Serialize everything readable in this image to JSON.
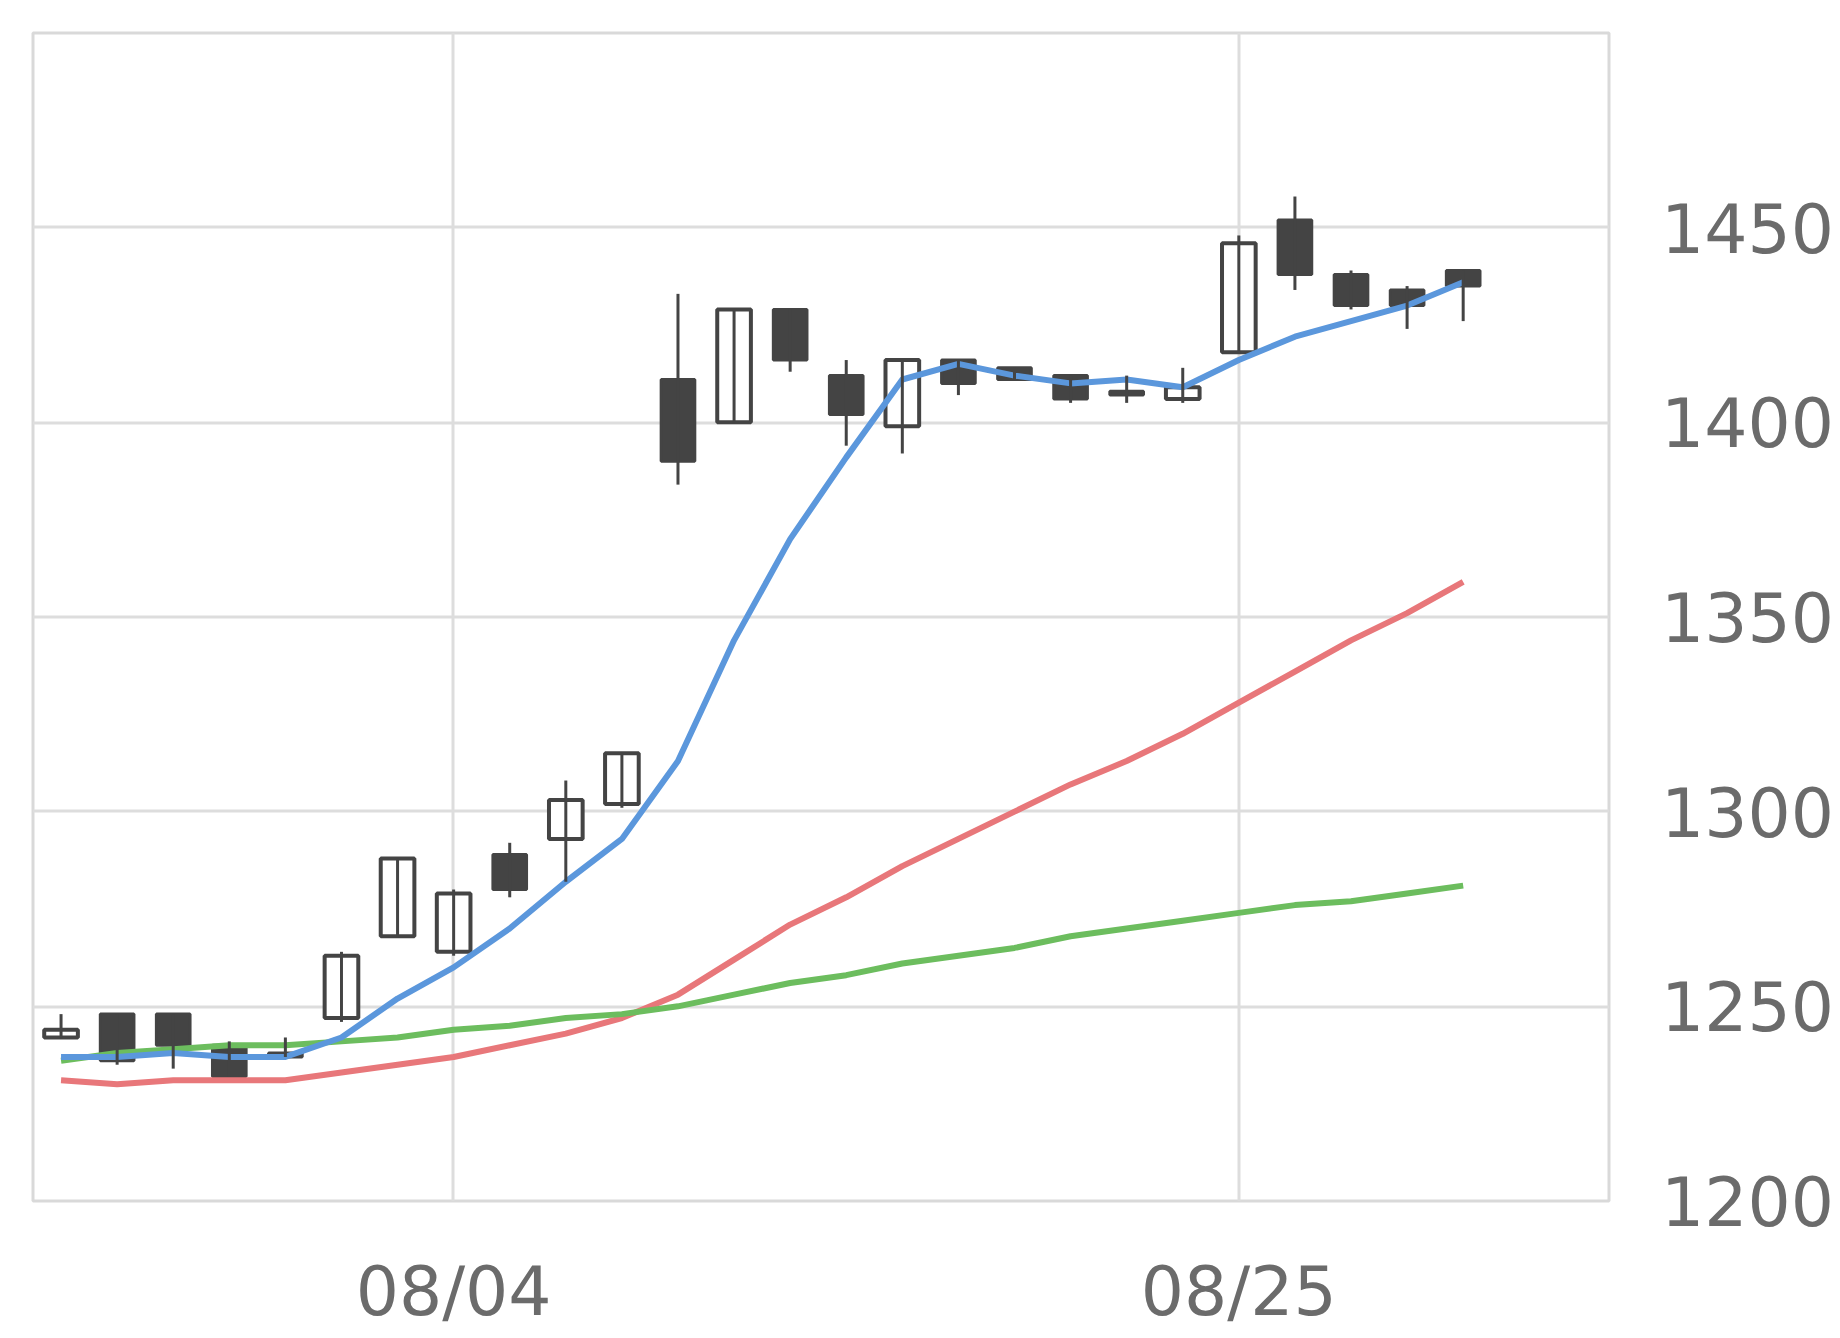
{
  "chart_data": {
    "type": "candlestick",
    "categories": [
      null,
      null,
      null,
      null,
      null,
      null,
      null,
      "08/04",
      null,
      null,
      null,
      null,
      null,
      null,
      null,
      null,
      null,
      null,
      null,
      null,
      null,
      "08/25",
      null,
      null,
      null,
      null
    ],
    "ohlc": [
      [
        1242,
        1248,
        1242,
        1244
      ],
      [
        1248,
        1248,
        1235,
        1236
      ],
      [
        1248,
        1248,
        1234,
        1240
      ],
      [
        1240,
        1241,
        1232,
        1232
      ],
      [
        1238,
        1242,
        1237,
        1237
      ],
      [
        1247,
        1264,
        1246,
        1263
      ],
      [
        1268,
        1288,
        1268,
        1288
      ],
      [
        1264,
        1280,
        1263,
        1279
      ],
      [
        1289,
        1292,
        1278,
        1280
      ],
      [
        1293,
        1308,
        1282,
        1303
      ],
      [
        1302,
        1315,
        1301,
        1315
      ],
      [
        1411,
        1433,
        1384,
        1390
      ],
      [
        1400,
        1429,
        1400,
        1429
      ],
      [
        1429,
        1429,
        1413,
        1416
      ],
      [
        1412,
        1416,
        1394,
        1402
      ],
      [
        1399,
        1416,
        1392,
        1416
      ],
      [
        1416,
        1416,
        1407,
        1410
      ],
      [
        1414,
        1414,
        1411,
        1411
      ],
      [
        1412,
        1412,
        1405,
        1406
      ],
      [
        1408,
        1412,
        1405,
        1407
      ],
      [
        1406,
        1414,
        1405,
        1409
      ],
      [
        1418,
        1448,
        1418,
        1446
      ],
      [
        1452,
        1458,
        1434,
        1438
      ],
      [
        1438,
        1439,
        1429,
        1430
      ],
      [
        1434,
        1435,
        1424,
        1430
      ],
      [
        1439,
        1439,
        1426,
        1435
      ]
    ],
    "series": [
      {
        "type": "line",
        "color": "#e8777a",
        "values": [
          1231,
          1230,
          1231,
          1231,
          1231,
          1233,
          1235,
          1237,
          1240,
          1243,
          1247,
          1253,
          1262,
          1271,
          1278,
          1286,
          1293,
          1300,
          1307,
          1313,
          1320,
          1328,
          1336,
          1344,
          1351,
          1359
        ]
      },
      {
        "type": "line",
        "color": "#6cbd5e",
        "values": [
          1236,
          1238,
          1239,
          1240,
          1240,
          1241,
          1242,
          1244,
          1245,
          1247,
          1248,
          1250,
          1253,
          1256,
          1258,
          1261,
          1263,
          1265,
          1268,
          1270,
          1272,
          1274,
          1276,
          1277,
          1279,
          1281
        ]
      },
      {
        "type": "line",
        "color": "#5b97dc",
        "values": [
          1237,
          1237,
          1238,
          1237,
          1237,
          1242,
          1252,
          1260,
          1270,
          1282,
          1293,
          1313,
          1344,
          1370,
          1391,
          1411,
          1415,
          1412,
          1410,
          1411,
          1409,
          1416,
          1422,
          1426,
          1430,
          1436
        ]
      }
    ],
    "ylim": [
      1200,
      1500
    ],
    "yticks": [
      1200,
      1250,
      1300,
      1350,
      1400,
      1450
    ],
    "grid": true,
    "line_style": "solid",
    "marker": "none"
  }
}
